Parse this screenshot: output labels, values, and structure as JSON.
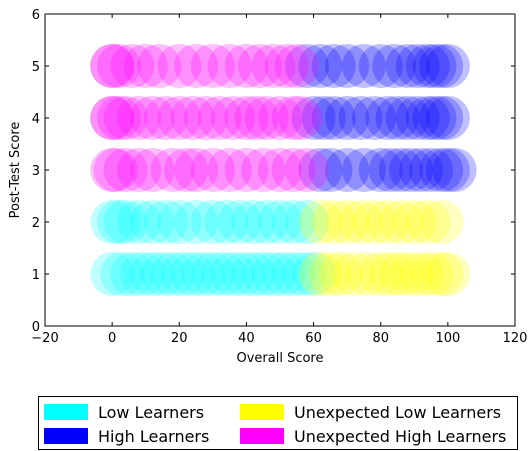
{
  "chart_data": {
    "type": "scatter",
    "title": "",
    "xlabel": "Overall Score",
    "ylabel": "Post-Test Score",
    "xlim": [
      -20,
      120
    ],
    "ylim": [
      0,
      6
    ],
    "xticks": [
      "−20",
      "0",
      "20",
      "40",
      "60",
      "80",
      "100",
      "120"
    ],
    "yticks": [
      "0",
      "1",
      "2",
      "3",
      "4",
      "5",
      "6"
    ],
    "grid": false,
    "legend_placement": "below",
    "series": [
      {
        "name": "Low Learners",
        "color": "#00ffff",
        "points": [
          [
            0,
            1
          ],
          [
            3,
            1
          ],
          [
            6,
            1
          ],
          [
            9,
            1
          ],
          [
            12,
            1
          ],
          [
            15,
            1
          ],
          [
            18,
            1
          ],
          [
            21,
            1
          ],
          [
            24,
            1
          ],
          [
            27,
            1
          ],
          [
            30,
            1
          ],
          [
            33,
            1
          ],
          [
            36,
            1
          ],
          [
            39,
            1
          ],
          [
            42,
            1
          ],
          [
            45,
            1
          ],
          [
            48,
            1
          ],
          [
            51,
            1
          ],
          [
            54,
            1
          ],
          [
            57,
            1
          ],
          [
            60,
            1
          ],
          [
            0,
            2
          ],
          [
            2,
            2
          ],
          [
            4,
            2
          ],
          [
            8,
            2
          ],
          [
            12,
            2
          ],
          [
            16,
            2
          ],
          [
            20,
            2
          ],
          [
            25,
            2
          ],
          [
            30,
            2
          ],
          [
            34,
            2
          ],
          [
            38,
            2
          ],
          [
            42,
            2
          ],
          [
            46,
            2
          ],
          [
            50,
            2
          ],
          [
            54,
            2
          ],
          [
            58,
            2
          ]
        ]
      },
      {
        "name": "High Learners",
        "color": "#0000ff",
        "points": [
          [
            62,
            3
          ],
          [
            65,
            3
          ],
          [
            70,
            3
          ],
          [
            75,
            3
          ],
          [
            80,
            3
          ],
          [
            83,
            3
          ],
          [
            86,
            3
          ],
          [
            89,
            3
          ],
          [
            92,
            3
          ],
          [
            95,
            3
          ],
          [
            98,
            3
          ],
          [
            100,
            3
          ],
          [
            102,
            3
          ],
          [
            60,
            4
          ],
          [
            63,
            4
          ],
          [
            66,
            4
          ],
          [
            70,
            4
          ],
          [
            74,
            4
          ],
          [
            78,
            4
          ],
          [
            82,
            4
          ],
          [
            85,
            4
          ],
          [
            88,
            4
          ],
          [
            91,
            4
          ],
          [
            94,
            4
          ],
          [
            96,
            4
          ],
          [
            98,
            4
          ],
          [
            100,
            4
          ],
          [
            58,
            5
          ],
          [
            62,
            5
          ],
          [
            66,
            5
          ],
          [
            70,
            5
          ],
          [
            75,
            5
          ],
          [
            80,
            5
          ],
          [
            84,
            5
          ],
          [
            88,
            5
          ],
          [
            91,
            5
          ],
          [
            94,
            5
          ],
          [
            96,
            5
          ],
          [
            98,
            5
          ],
          [
            100,
            5
          ]
        ]
      },
      {
        "name": "Unexpected Low Learners",
        "color": "#ffff00",
        "points": [
          [
            62,
            1
          ],
          [
            65,
            1
          ],
          [
            68,
            1
          ],
          [
            72,
            1
          ],
          [
            76,
            1
          ],
          [
            80,
            1
          ],
          [
            83,
            1
          ],
          [
            86,
            1
          ],
          [
            89,
            1
          ],
          [
            92,
            1
          ],
          [
            95,
            1
          ],
          [
            98,
            1
          ],
          [
            100,
            1
          ],
          [
            62,
            2
          ],
          [
            66,
            2
          ],
          [
            70,
            2
          ],
          [
            74,
            2
          ],
          [
            78,
            2
          ],
          [
            82,
            2
          ],
          [
            86,
            2
          ],
          [
            90,
            2
          ],
          [
            94,
            2
          ],
          [
            98,
            2
          ]
        ]
      },
      {
        "name": "Unexpected High Learners",
        "color": "#ff00ff",
        "points": [
          [
            0,
            3
          ],
          [
            1,
            3
          ],
          [
            4,
            3
          ],
          [
            8,
            3
          ],
          [
            12,
            3
          ],
          [
            18,
            3
          ],
          [
            22,
            3
          ],
          [
            25,
            3
          ],
          [
            30,
            3
          ],
          [
            35,
            3
          ],
          [
            40,
            3
          ],
          [
            45,
            3
          ],
          [
            50,
            3
          ],
          [
            54,
            3
          ],
          [
            58,
            3
          ],
          [
            0,
            4
          ],
          [
            0,
            4
          ],
          [
            2,
            4
          ],
          [
            4,
            4
          ],
          [
            8,
            4
          ],
          [
            12,
            4
          ],
          [
            16,
            4
          ],
          [
            20,
            4
          ],
          [
            24,
            4
          ],
          [
            28,
            4
          ],
          [
            32,
            4
          ],
          [
            36,
            4
          ],
          [
            40,
            4
          ],
          [
            43,
            4
          ],
          [
            46,
            4
          ],
          [
            50,
            4
          ],
          [
            54,
            4
          ],
          [
            56,
            4
          ],
          [
            0,
            5
          ],
          [
            0,
            5
          ],
          [
            2,
            5
          ],
          [
            6,
            5
          ],
          [
            10,
            5
          ],
          [
            14,
            5
          ],
          [
            20,
            5
          ],
          [
            25,
            5
          ],
          [
            30,
            5
          ],
          [
            35,
            5
          ],
          [
            40,
            5
          ],
          [
            44,
            5
          ],
          [
            48,
            5
          ],
          [
            52,
            5
          ],
          [
            55,
            5
          ]
        ]
      }
    ]
  },
  "legend": {
    "items": [
      {
        "label": "Low Learners",
        "color": "#00ffff"
      },
      {
        "label": "Unexpected Low Learners",
        "color": "#ffff00"
      },
      {
        "label": "High Learners",
        "color": "#0000ff"
      },
      {
        "label": "Unexpected High Learners",
        "color": "#ff00ff"
      }
    ]
  }
}
